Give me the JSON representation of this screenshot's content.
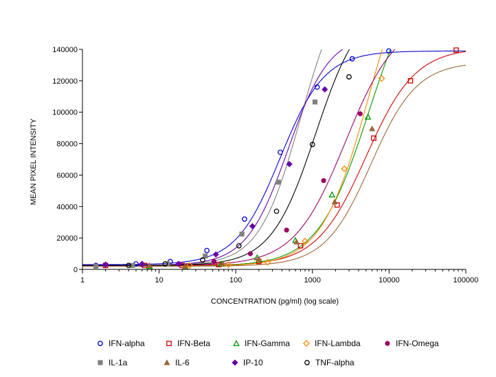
{
  "chart_data": {
    "type": "scatter",
    "title": "",
    "xlabel": "CONCENTRATION (pg/ml) (log scale)",
    "ylabel": "MEAN PIXEL INTENSITY",
    "xscale": "log",
    "xlim": [
      1,
      100000
    ],
    "ylim": [
      0,
      140000
    ],
    "x_ticks": [
      1,
      10,
      100,
      1000,
      10000,
      100000
    ],
    "x_tick_labels": [
      "1",
      "10",
      "100",
      "1000",
      "10000",
      "100000"
    ],
    "y_ticks": [
      0,
      20000,
      40000,
      60000,
      80000,
      100000,
      120000,
      140000
    ],
    "y_tick_labels": [
      "0",
      "20000",
      "40000",
      "60000",
      "80000",
      "100000",
      "120000",
      "140000"
    ],
    "legend_position": "bottom",
    "series": [
      {
        "name": "IFN-alpha",
        "color": "#0000cc",
        "marker": "circle-open",
        "curve": {
          "bottom": 3000,
          "top": 139000,
          "ec50": 380,
          "hill": 1.5
        },
        "points": [
          [
            1.5,
            2500
          ],
          [
            5,
            3500
          ],
          [
            14,
            5000
          ],
          [
            42,
            12000
          ],
          [
            130,
            32000
          ],
          [
            380,
            74500
          ],
          [
            1150,
            116000
          ],
          [
            3300,
            134000
          ],
          [
            9900,
            139000
          ]
        ]
      },
      {
        "name": "IFN-Beta",
        "color": "#cc0000",
        "marker": "square-open",
        "curve": {
          "bottom": 2500,
          "top": 141000,
          "ec50": 5000,
          "hill": 1.35
        },
        "points": [
          [
            2,
            2500
          ],
          [
            6.5,
            2500
          ],
          [
            20,
            2500
          ],
          [
            60,
            3000
          ],
          [
            200,
            5000
          ],
          [
            700,
            15000
          ],
          [
            2100,
            41000
          ],
          [
            6300,
            83500
          ],
          [
            19000,
            120000
          ],
          [
            75000,
            139500
          ]
        ]
      },
      {
        "name": "IFN-Gamma",
        "color": "#009900",
        "marker": "triangle-open",
        "curve": {
          "bottom": 2000,
          "top": 200000,
          "ec50": 5500,
          "hill": 1.3
        },
        "points": [
          [
            7.5,
            2000
          ],
          [
            22,
            1500
          ],
          [
            65,
            3500
          ],
          [
            190,
            7500
          ],
          [
            600,
            18500
          ],
          [
            1800,
            47500
          ],
          [
            5300,
            97000
          ]
        ]
      },
      {
        "name": "IFN-Lambda",
        "color": "#ff8800",
        "marker": "diamond-open",
        "curve": {
          "bottom": 2000,
          "top": 220000,
          "ec50": 5500,
          "hill": 1.4
        },
        "points": [
          [
            25,
            2500
          ],
          [
            80,
            3000
          ],
          [
            260,
            4500
          ],
          [
            800,
            18000
          ],
          [
            2600,
            64000
          ],
          [
            8000,
            121500
          ]
        ]
      },
      {
        "name": "IFN-Omega",
        "color": "#990066",
        "marker": "circle-filled",
        "curve": {
          "bottom": 2500,
          "top": 160000,
          "ec50": 2700,
          "hill": 1.3
        },
        "points": [
          [
            2,
            3000
          ],
          [
            6,
            3000
          ],
          [
            18,
            3500
          ],
          [
            52,
            5000
          ],
          [
            155,
            10000
          ],
          [
            460,
            25000
          ],
          [
            1400,
            56500
          ],
          [
            4200,
            99000
          ]
        ]
      },
      {
        "name": "IL-1a",
        "color": "#808080",
        "marker": "square-filled",
        "curve": {
          "bottom": 2500,
          "top": 190000,
          "ec50": 700,
          "hill": 1.6
        },
        "points": [
          [
            1.5,
            2000
          ],
          [
            4.5,
            2500
          ],
          [
            13,
            3500
          ],
          [
            40,
            8500
          ],
          [
            120,
            22500
          ],
          [
            360,
            55500
          ],
          [
            1080,
            106500
          ]
        ]
      },
      {
        "name": "IL-6",
        "color": "#996633",
        "marker": "triangle-filled",
        "curve": {
          "bottom": 2000,
          "top": 132000,
          "ec50": 5800,
          "hill": 1.45
        },
        "points": [
          [
            7.5,
            2500
          ],
          [
            22,
            2000
          ],
          [
            68,
            3500
          ],
          [
            200,
            6500
          ],
          [
            620,
            17500
          ],
          [
            1950,
            43000
          ],
          [
            6000,
            89500
          ]
        ]
      },
      {
        "name": "IP-10",
        "color": "#6600aa",
        "marker": "diamond-filled",
        "curve": {
          "bottom": 2500,
          "top": 150000,
          "ec50": 480,
          "hill": 1.6
        },
        "points": [
          [
            2,
            3000
          ],
          [
            6,
            3500
          ],
          [
            18,
            3500
          ],
          [
            55,
            9500
          ],
          [
            165,
            27500
          ],
          [
            500,
            67000
          ],
          [
            1450,
            114500
          ]
        ]
      },
      {
        "name": "TNF-alpha",
        "color": "#000000",
        "marker": "circle-open",
        "curve": {
          "bottom": 2500,
          "top": 170000,
          "ec50": 1100,
          "hill": 1.5
        },
        "points": [
          [
            4,
            2500
          ],
          [
            12,
            3500
          ],
          [
            37,
            6000
          ],
          [
            110,
            15000
          ],
          [
            340,
            37000
          ],
          [
            1000,
            79500
          ],
          [
            3000,
            122500
          ]
        ]
      }
    ]
  }
}
